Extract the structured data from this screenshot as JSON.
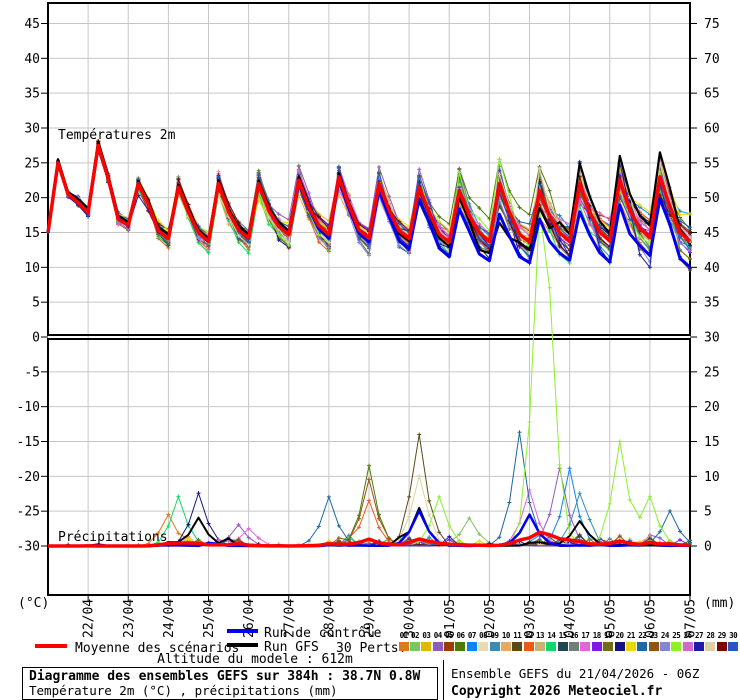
{
  "footer": {
    "title": "Diagramme des ensembles GEFS sur 384h : 38.7N 0.8W",
    "subtitle": "Température 2m (°C) , précipitations (mm)",
    "run_info": "Ensemble GEFS du 21/04/2026 - 06Z",
    "copyright": "Copyright 2026 Meteociel.fr",
    "altitude": "Altitude du modele : 612m"
  },
  "legend": {
    "mean_label": "Moyenne des scénarios",
    "control_label": "Run de contrôle",
    "gfs_label": "Run GFS",
    "perts_label": "30 Perts.",
    "mean_color": "#ff0000",
    "control_color": "#0000ee",
    "gfs_color": "#000000"
  },
  "panel_labels": {
    "temperature": "Températures 2m",
    "precipitation": "Précipitations",
    "left_unit": "(°C)",
    "right_unit": "(mm)"
  },
  "axes": {
    "temp_ticks": [
      45,
      40,
      35,
      30,
      25,
      20,
      15,
      10,
      5,
      0,
      -5,
      -10,
      -15,
      -20,
      -25,
      -30
    ],
    "precip_ticks": [
      75,
      70,
      65,
      60,
      55,
      50,
      45,
      40,
      35,
      30,
      25,
      20,
      15,
      10,
      5,
      0
    ],
    "dates": [
      "22/04",
      "23/04",
      "24/04",
      "25/04",
      "26/04",
      "27/04",
      "28/04",
      "29/04",
      "30/04",
      "01/05",
      "02/05",
      "03/05",
      "04/05",
      "05/05",
      "06/05",
      "07/05"
    ]
  },
  "perts": {
    "labels": [
      "01",
      "02",
      "03",
      "04",
      "05",
      "06",
      "07",
      "08",
      "09",
      "10",
      "11",
      "12",
      "13",
      "14",
      "15",
      "16",
      "17",
      "18",
      "19",
      "20",
      "21",
      "22",
      "23",
      "24",
      "25",
      "26",
      "27",
      "28",
      "29",
      "30"
    ],
    "colors": [
      "#e07820",
      "#7cc464",
      "#e0b800",
      "#9058c0",
      "#a03808",
      "#4e7a08",
      "#0a84f0",
      "#e8dcb0",
      "#3a8cb0",
      "#e8a860",
      "#5c4a14",
      "#f05818",
      "#c4b478",
      "#10d868",
      "#1e4850",
      "#6e8078",
      "#e464dc",
      "#8418e0",
      "#746c1c",
      "#141480",
      "#ecd800",
      "#1e68a0",
      "#925414",
      "#8484d8",
      "#8cf02c",
      "#d468c4",
      "#1c1ca4",
      "#ded0a4",
      "#7c0404",
      "#2854c4"
    ]
  },
  "chart_data": {
    "type": "line",
    "hours_range": 384,
    "step_hours": 6,
    "start_label": "21/04 06Z",
    "temp_axis_range": [
      -30,
      47
    ],
    "precip_axis_range": [
      0,
      80
    ],
    "grid": true,
    "seed": 42,
    "temperature": {
      "mean_daily_min": [
        15,
        17,
        15.5,
        13.5,
        13,
        13.5,
        14,
        14,
        13.5,
        13.5,
        13,
        13,
        13,
        13,
        13,
        13.5,
        13
      ],
      "mean_daily_max": [
        25,
        27.5,
        22,
        21.5,
        22,
        22,
        22.5,
        23,
        22,
        21.5,
        21,
        22,
        21,
        22,
        22.5,
        23,
        22
      ],
      "control_daily_min": [
        15,
        17,
        15.5,
        13.5,
        13,
        13.5,
        14,
        13.5,
        13,
        12,
        11,
        10.5,
        10,
        10.5,
        10,
        11,
        9.5
      ],
      "control_daily_max": [
        25,
        27.5,
        22,
        21.5,
        22,
        22,
        22,
        22.5,
        21,
        20,
        18.5,
        17.5,
        17,
        18,
        19,
        20,
        18
      ],
      "gfs_daily_min": [
        15,
        17.5,
        16,
        14,
        13.5,
        14,
        14.5,
        14,
        13,
        13,
        12.5,
        11.5,
        12,
        14,
        14,
        15,
        13
      ],
      "gfs_daily_max": [
        25.5,
        28,
        22.5,
        22,
        22.5,
        22.5,
        23,
        23.5,
        22,
        21,
        20,
        16.5,
        18.5,
        25,
        26,
        26.5,
        24
      ],
      "ensemble_spread_by_day": [
        0.5,
        0.9,
        1.4,
        1.7,
        2.0,
        2.2,
        2.4,
        2.6,
        2.8,
        3.0,
        3.2,
        3.4,
        3.6,
        3.8,
        4.0,
        4.2,
        4.4
      ]
    },
    "precipitation": {
      "wet_windows_days": [
        [
          2.8,
          5.2
        ],
        [
          7.2,
          10.6
        ],
        [
          11.0,
          16.5
        ]
      ],
      "member_peak_events": [
        {
          "member": 1,
          "day": 3.2,
          "peak": 4.5
        },
        {
          "member": 14,
          "day": 3.6,
          "peak": 7
        },
        {
          "member": 20,
          "day": 4.1,
          "peak": 7.5
        },
        {
          "member": "gfs",
          "day": 4.0,
          "peak": 4
        },
        {
          "member": 4,
          "day": 4.9,
          "peak": 3
        },
        {
          "member": 17,
          "day": 5.3,
          "peak": 2.5
        },
        {
          "member": 22,
          "day": 7.3,
          "peak": 7
        },
        {
          "member": 23,
          "day": 8.2,
          "peak": 9.5
        },
        {
          "member": 6,
          "day": 8.3,
          "peak": 11
        },
        {
          "member": 12,
          "day": 8.25,
          "peak": 6.5
        },
        {
          "member": 28,
          "day": 9.4,
          "peak": 10
        },
        {
          "member": 11,
          "day": 9.55,
          "peak": 16
        },
        {
          "member": "control",
          "day": 9.5,
          "peak": 5
        },
        {
          "member": "gfs",
          "day": 9.6,
          "peak": 5
        },
        {
          "member": 25,
          "day": 9.95,
          "peak": 7
        },
        {
          "member": 2,
          "day": 10.8,
          "peak": 4
        },
        {
          "member": 22,
          "day": 12.0,
          "peak": 15.5
        },
        {
          "member": 17,
          "day": 12.15,
          "peak": 8
        },
        {
          "member": 25,
          "day": 12.45,
          "peak": 40
        },
        {
          "member": 25,
          "day": 12.75,
          "peak": 21
        },
        {
          "member": "control",
          "day": 12.25,
          "peak": 4.5
        },
        {
          "member": 4,
          "day": 13.05,
          "peak": 11
        },
        {
          "member": 7,
          "day": 13.3,
          "peak": 10.5
        },
        {
          "member": 9,
          "day": 13.6,
          "peak": 7.5
        },
        {
          "member": "gfs",
          "day": 13.4,
          "peak": 3.5
        },
        {
          "member": 25,
          "day": 14.55,
          "peak": 15
        },
        {
          "member": 25,
          "day": 15.3,
          "peak": 7
        },
        {
          "member": 22,
          "day": 15.8,
          "peak": 5
        }
      ]
    }
  }
}
